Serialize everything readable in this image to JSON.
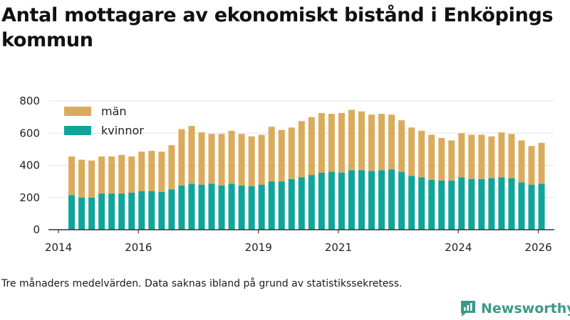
{
  "header": {
    "title": "Antal mottagare av ekonomiskt bistånd i Enköpings kommun"
  },
  "footer": {
    "note": "Tre månaders medelvärden. Data saknas ibland på grund av statistikssekretess."
  },
  "brand": {
    "name": "Newsworthy",
    "color": "#3a9a88"
  },
  "colors": {
    "men": "#dbab5d",
    "women": "#10a59b",
    "axis": "#333333",
    "grid": "#e4e4e4"
  },
  "chart_data": {
    "type": "bar",
    "stacked": true,
    "title": "Antal mottagare av ekonomiskt bistånd i Enköpings kommun",
    "xlabel": "",
    "ylabel": "",
    "ylim": [
      0,
      800
    ],
    "yticks": [
      0,
      200,
      400,
      600,
      800
    ],
    "xlim": [
      2013.75,
      2026.4
    ],
    "xticks": [
      2014,
      2016,
      2019,
      2021,
      2024,
      2026
    ],
    "legend": [
      "män",
      "kvinnor"
    ],
    "legend_position": "top-left",
    "x": [
      2014.33,
      2014.58,
      2014.83,
      2015.08,
      2015.33,
      2015.58,
      2015.83,
      2016.08,
      2016.33,
      2016.58,
      2016.83,
      2017.08,
      2017.33,
      2017.58,
      2017.83,
      2018.08,
      2018.33,
      2018.58,
      2018.83,
      2019.08,
      2019.33,
      2019.58,
      2019.83,
      2020.08,
      2020.33,
      2020.58,
      2020.83,
      2021.08,
      2021.33,
      2021.58,
      2021.83,
      2022.08,
      2022.33,
      2022.58,
      2022.83,
      2023.08,
      2023.33,
      2023.58,
      2023.83,
      2024.08,
      2024.33,
      2024.58,
      2024.83,
      2025.08,
      2025.33,
      2025.58,
      2025.83,
      2026.08
    ],
    "series": [
      {
        "name": "kvinnor",
        "color": "#10a59b",
        "values": [
          215,
          200,
          200,
          225,
          225,
          225,
          230,
          240,
          240,
          235,
          250,
          275,
          285,
          280,
          285,
          275,
          285,
          275,
          270,
          280,
          300,
          300,
          315,
          325,
          340,
          355,
          360,
          355,
          370,
          370,
          365,
          370,
          375,
          360,
          335,
          325,
          310,
          305,
          305,
          325,
          315,
          315,
          320,
          325,
          320,
          295,
          280,
          285
        ]
      },
      {
        "name": "män",
        "color": "#dbab5d",
        "values": [
          240,
          235,
          230,
          230,
          230,
          240,
          225,
          245,
          250,
          250,
          275,
          350,
          360,
          325,
          310,
          320,
          330,
          320,
          310,
          310,
          340,
          320,
          320,
          350,
          360,
          370,
          360,
          370,
          375,
          365,
          350,
          350,
          340,
          320,
          300,
          290,
          280,
          265,
          250,
          275,
          275,
          275,
          260,
          280,
          275,
          260,
          240,
          255
        ]
      }
    ]
  }
}
